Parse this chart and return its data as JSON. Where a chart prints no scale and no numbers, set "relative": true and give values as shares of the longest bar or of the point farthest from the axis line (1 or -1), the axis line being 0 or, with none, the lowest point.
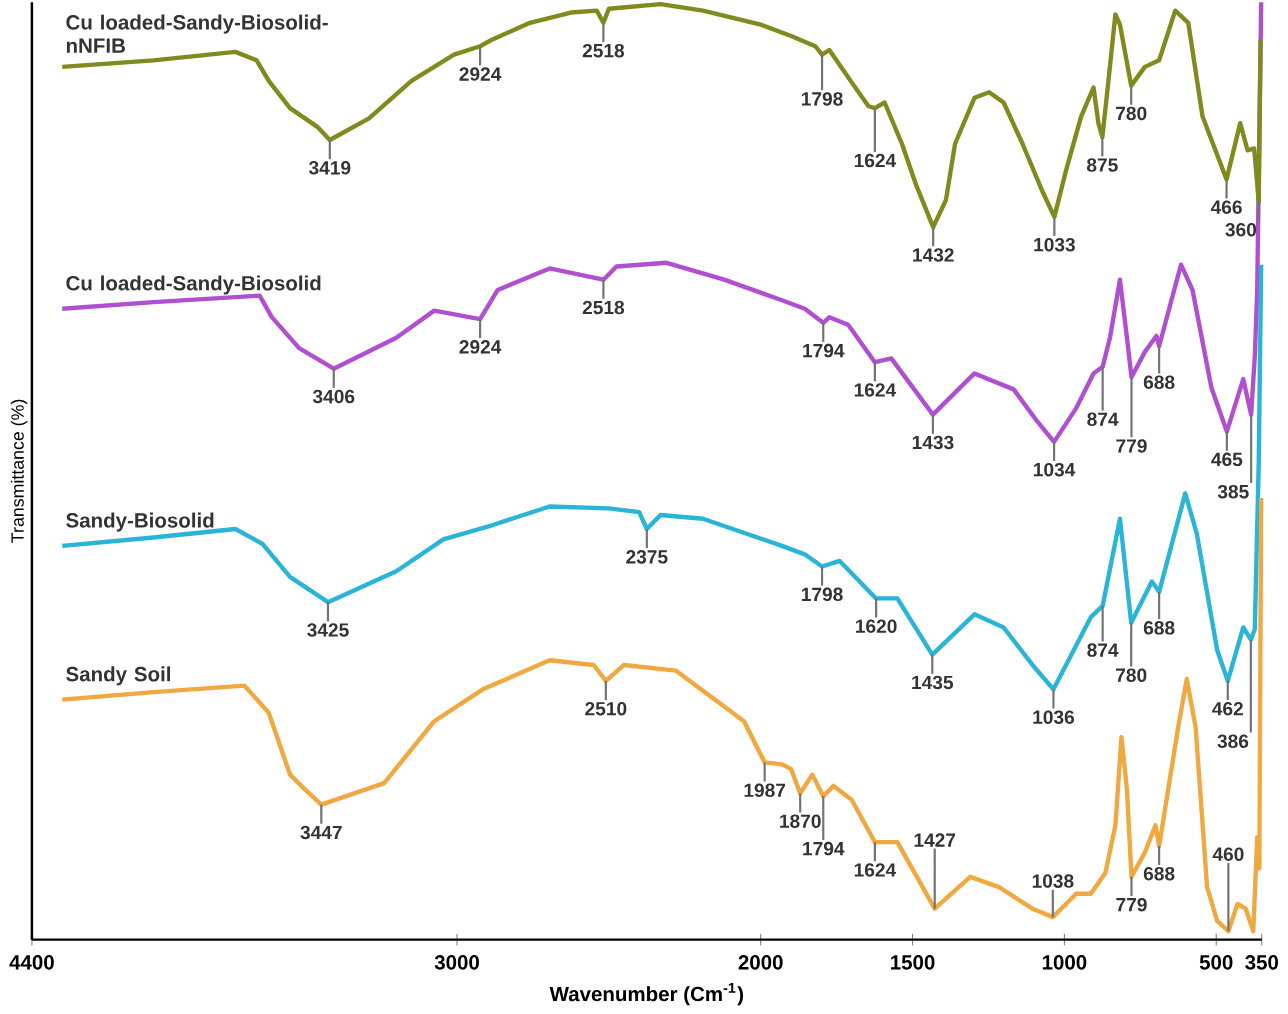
{
  "chart_data": {
    "type": "line",
    "relative": true,
    "xlabel": "Wavenumber (Cm$^{-1}$)",
    "ylabel": "Transmittance (%)",
    "xlim": [
      4400,
      350
    ],
    "xticks": [
      4400,
      3000,
      2000,
      1500,
      1000,
      500,
      350
    ],
    "grid": false,
    "series": [
      {
        "name": "Cu loaded-Sandy-Biosolid-nNFIB",
        "color": "#808a1e",
        "x": [
          4300,
          4000,
          3730,
          3660,
          3620,
          3550,
          3460,
          3419,
          3290,
          3150,
          3010,
          2924,
          2885,
          2760,
          2625,
          2540,
          2518,
          2500,
          2330,
          2190,
          2000,
          1900,
          1820,
          1798,
          1774,
          1693,
          1645,
          1624,
          1592,
          1535,
          1487,
          1432,
          1390,
          1360,
          1296,
          1248,
          1200,
          1138,
          1072,
          1033,
          995,
          945,
          904,
          888,
          875,
          855,
          832,
          817,
          780,
          735,
          688,
          635,
          592,
          545,
          466,
          421,
          397,
          375,
          360,
          354
        ],
        "values": [
          0.931,
          0.938,
          0.947,
          0.938,
          0.916,
          0.887,
          0.867,
          0.853,
          0.876,
          0.916,
          0.944,
          0.953,
          0.96,
          0.978,
          0.989,
          0.991,
          0.978,
          0.993,
          0.998,
          0.991,
          0.976,
          0.964,
          0.953,
          0.944,
          0.949,
          0.911,
          0.889,
          0.887,
          0.893,
          0.849,
          0.804,
          0.76,
          0.789,
          0.849,
          0.898,
          0.904,
          0.893,
          0.849,
          0.798,
          0.771,
          0.82,
          0.878,
          0.909,
          0.871,
          0.856,
          0.916,
          0.987,
          0.976,
          0.911,
          0.931,
          0.938,
          0.991,
          0.978,
          0.878,
          0.811,
          0.871,
          0.842,
          0.844,
          0.787,
          0.96
        ]
      },
      {
        "name": "Cu loaded-Sandy-Biosolid",
        "color": "#b050d0",
        "x": [
          4300,
          4000,
          3650,
          3610,
          3520,
          3406,
          3200,
          3075,
          2924,
          2866,
          2695,
          2518,
          2475,
          2310,
          2120,
          1930,
          1855,
          1794,
          1774,
          1712,
          1624,
          1570,
          1433,
          1296,
          1167,
          1090,
          1034,
          961,
          904,
          874,
          850,
          817,
          794,
          779,
          735,
          697,
          688,
          616,
          578,
          516,
          465,
          411,
          385,
          373,
          365,
          352
        ],
        "values": [
          0.673,
          0.68,
          0.687,
          0.664,
          0.631,
          0.609,
          0.642,
          0.671,
          0.662,
          0.693,
          0.716,
          0.704,
          0.718,
          0.722,
          0.704,
          0.682,
          0.673,
          0.658,
          0.664,
          0.656,
          0.616,
          0.62,
          0.56,
          0.604,
          0.587,
          0.553,
          0.531,
          0.567,
          0.604,
          0.611,
          0.642,
          0.704,
          0.642,
          0.6,
          0.627,
          0.644,
          0.633,
          0.72,
          0.693,
          0.589,
          0.542,
          0.598,
          0.56,
          0.622,
          0.693,
          1.0
        ]
      },
      {
        "name": "Sandy-Biosolid",
        "color": "#2ab4d8",
        "x": [
          4300,
          4000,
          3730,
          3640,
          3550,
          3425,
          3200,
          3045,
          2885,
          2695,
          2500,
          2400,
          2375,
          2330,
          2190,
          1930,
          1855,
          1798,
          1740,
          1620,
          1550,
          1435,
          1296,
          1200,
          1105,
          1036,
          913,
          874,
          817,
          780,
          712,
          688,
          602,
          564,
          497,
          462,
          411,
          386,
          373,
          360,
          352
        ],
        "values": [
          0.42,
          0.429,
          0.438,
          0.422,
          0.387,
          0.36,
          0.393,
          0.427,
          0.442,
          0.462,
          0.46,
          0.456,
          0.438,
          0.453,
          0.449,
          0.42,
          0.411,
          0.398,
          0.404,
          0.364,
          0.364,
          0.304,
          0.347,
          0.333,
          0.293,
          0.267,
          0.344,
          0.356,
          0.449,
          0.338,
          0.382,
          0.371,
          0.476,
          0.433,
          0.309,
          0.276,
          0.333,
          0.32,
          0.331,
          0.509,
          0.72
        ]
      },
      {
        "name": "Sandy Soil",
        "color": "#f0a840",
        "x": [
          4300,
          4000,
          3700,
          3620,
          3550,
          3500,
          3447,
          3240,
          3075,
          2915,
          2695,
          2550,
          2510,
          2450,
          2280,
          2055,
          1987,
          1930,
          1900,
          1870,
          1830,
          1794,
          1760,
          1700,
          1624,
          1550,
          1427,
          1310,
          1215,
          1105,
          1038,
          961,
          913,
          865,
          832,
          812,
          794,
          779,
          735,
          700,
          688,
          625,
          597,
          568,
          530,
          497,
          460,
          430,
          403,
          378,
          365,
          358,
          352
        ],
        "values": [
          0.256,
          0.264,
          0.271,
          0.242,
          0.176,
          0.16,
          0.144,
          0.167,
          0.233,
          0.267,
          0.298,
          0.293,
          0.276,
          0.293,
          0.287,
          0.233,
          0.189,
          0.187,
          0.182,
          0.156,
          0.176,
          0.153,
          0.164,
          0.149,
          0.104,
          0.104,
          0.033,
          0.067,
          0.056,
          0.033,
          0.024,
          0.049,
          0.049,
          0.071,
          0.122,
          0.216,
          0.16,
          0.067,
          0.093,
          0.122,
          0.1,
          0.227,
          0.278,
          0.227,
          0.056,
          0.02,
          0.009,
          0.038,
          0.033,
          0.009,
          0.109,
          0.076,
          0.471
        ]
      }
    ],
    "annotations": [
      {
        "text": "3419",
        "x": 3419,
        "y": 0.853
      },
      {
        "text": "2924",
        "x": 2924,
        "y": 0.953
      },
      {
        "text": "2518",
        "x": 2518,
        "y": 0.978
      },
      {
        "text": "1798",
        "x": 1798,
        "y": 0.944
      },
      {
        "text": "1624",
        "x": 1624,
        "y": 0.887
      },
      {
        "text": "1432",
        "x": 1432,
        "y": 0.76
      },
      {
        "text": "1033",
        "x": 1033,
        "y": 0.771
      },
      {
        "text": "875",
        "x": 875,
        "y": 0.856
      },
      {
        "text": "780",
        "x": 780,
        "y": 0.911
      },
      {
        "text": "466",
        "x": 466,
        "y": 0.811
      },
      {
        "text": "360",
        "x": 360,
        "y": 0.787
      },
      {
        "text": "3406",
        "x": 3406,
        "y": 0.609
      },
      {
        "text": "2924",
        "x": 2924,
        "y": 0.662
      },
      {
        "text": "2518",
        "x": 2518,
        "y": 0.704
      },
      {
        "text": "1794",
        "x": 1794,
        "y": 0.658
      },
      {
        "text": "1624",
        "x": 1624,
        "y": 0.616
      },
      {
        "text": "1433",
        "x": 1433,
        "y": 0.56
      },
      {
        "text": "1034",
        "x": 1034,
        "y": 0.531
      },
      {
        "text": "874",
        "x": 874,
        "y": 0.611
      },
      {
        "text": "779",
        "x": 779,
        "y": 0.6
      },
      {
        "text": "688",
        "x": 688,
        "y": 0.633
      },
      {
        "text": "465",
        "x": 465,
        "y": 0.542
      },
      {
        "text": "385",
        "x": 385,
        "y": 0.56
      },
      {
        "text": "3425",
        "x": 3425,
        "y": 0.36
      },
      {
        "text": "2375",
        "x": 2375,
        "y": 0.438
      },
      {
        "text": "1798",
        "x": 1798,
        "y": 0.398
      },
      {
        "text": "1620",
        "x": 1620,
        "y": 0.364
      },
      {
        "text": "1435",
        "x": 1435,
        "y": 0.304
      },
      {
        "text": "1036",
        "x": 1036,
        "y": 0.267
      },
      {
        "text": "874",
        "x": 874,
        "y": 0.356
      },
      {
        "text": "780",
        "x": 780,
        "y": 0.338
      },
      {
        "text": "688",
        "x": 688,
        "y": 0.371
      },
      {
        "text": "462",
        "x": 462,
        "y": 0.276
      },
      {
        "text": "386",
        "x": 386,
        "y": 0.32
      },
      {
        "text": "3447",
        "x": 3447,
        "y": 0.144
      },
      {
        "text": "2510",
        "x": 2510,
        "y": 0.276
      },
      {
        "text": "1987",
        "x": 1987,
        "y": 0.189
      },
      {
        "text": "1870",
        "x": 1870,
        "y": 0.156
      },
      {
        "text": "1794",
        "x": 1794,
        "y": 0.153
      },
      {
        "text": "1624",
        "x": 1624,
        "y": 0.104
      },
      {
        "text": "1427",
        "x": 1427,
        "y": 0.033
      },
      {
        "text": "1038",
        "x": 1038,
        "y": 0.024
      },
      {
        "text": "779",
        "x": 779,
        "y": 0.067
      },
      {
        "text": "688",
        "x": 688,
        "y": 0.1
      },
      {
        "text": "460",
        "x": 460,
        "y": 0.009
      }
    ]
  }
}
